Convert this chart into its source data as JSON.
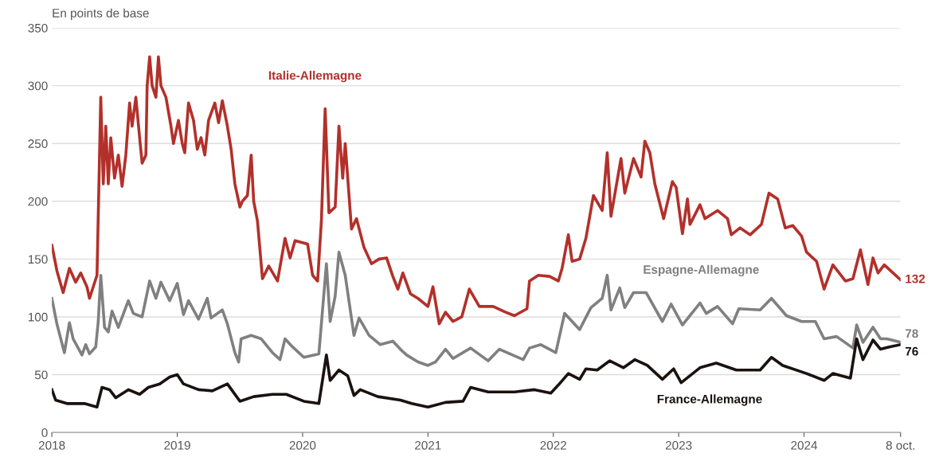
{
  "chart_data": {
    "type": "line",
    "ylabel": "En points de base",
    "ylim": [
      0,
      350
    ],
    "yticks": [
      0,
      50,
      100,
      150,
      200,
      250,
      300,
      350
    ],
    "xlim": [
      2018,
      2024.77
    ],
    "xticks": [
      2018,
      2019,
      2020,
      2021,
      2022,
      2023,
      2024,
      {
        "value": 2024.77,
        "label": "8 oct."
      }
    ],
    "grid": "y",
    "legend": false,
    "series": [
      {
        "name": "Italie-Allemagne",
        "color": "#b3302a",
        "value_labels": [
          null,
          null,
          null,
          null,
          null,
          null,
          null,
          null,
          null,
          null,
          null,
          null,
          null,
          null,
          null,
          null,
          null,
          null,
          null,
          null,
          null,
          null,
          null,
          null,
          null,
          null,
          null,
          null,
          null,
          null,
          null,
          null,
          null,
          null,
          null,
          null,
          null,
          null,
          null,
          null,
          null,
          null,
          null,
          null,
          null,
          null,
          null,
          null,
          null,
          null,
          null,
          null,
          null,
          null,
          null,
          null,
          null,
          null,
          null,
          null,
          null,
          null,
          null,
          null,
          null,
          null,
          null,
          null,
          null,
          null,
          null,
          null,
          null,
          null,
          null,
          null,
          null,
          null,
          null,
          null,
          null,
          null,
          null,
          null,
          null,
          null,
          null,
          null,
          null,
          null,
          null,
          null,
          null,
          null,
          null,
          null,
          null,
          null,
          null,
          null,
          null,
          null,
          null,
          null,
          null,
          null,
          null,
          null,
          null,
          null,
          null,
          null,
          null,
          null,
          null,
          null,
          null,
          null,
          null,
          null,
          null,
          null,
          null,
          null,
          null,
          null,
          null,
          null,
          null,
          null,
          null,
          null,
          null,
          null,
          null,
          null,
          null,
          null,
          null,
          null,
          null,
          null,
          null,
          "132"
        ],
        "x": [
          2018.0,
          2018.04,
          2018.09,
          2018.14,
          2018.19,
          2018.23,
          2018.28,
          2018.3,
          2018.36,
          2018.39,
          2018.41,
          2018.43,
          2018.45,
          2018.47,
          2018.5,
          2018.53,
          2018.56,
          2018.59,
          2018.62,
          2018.64,
          2018.67,
          2018.7,
          2018.72,
          2018.75,
          2018.76,
          2018.78,
          2018.8,
          2018.83,
          2018.85,
          2018.87,
          2018.91,
          2018.95,
          2018.97,
          2019.01,
          2019.04,
          2019.06,
          2019.09,
          2019.13,
          2019.16,
          2019.19,
          2019.22,
          2019.25,
          2019.3,
          2019.33,
          2019.36,
          2019.4,
          2019.43,
          2019.46,
          2019.5,
          2019.52,
          2019.56,
          2019.59,
          2019.61,
          2019.64,
          2019.68,
          2019.73,
          2019.8,
          2019.86,
          2019.9,
          2019.94,
          2020.04,
          2020.08,
          2020.12,
          2020.15,
          2020.18,
          2020.21,
          2020.26,
          2020.29,
          2020.32,
          2020.34,
          2020.39,
          2020.43,
          2020.49,
          2020.55,
          2020.61,
          2020.67,
          2020.72,
          2020.76,
          2020.8,
          2020.86,
          2020.92,
          2021.0,
          2021.04,
          2021.09,
          2021.14,
          2021.2,
          2021.27,
          2021.33,
          2021.41,
          2021.52,
          2021.62,
          2021.69,
          2021.79,
          2021.81,
          2021.88,
          2021.97,
          2022.04,
          2022.07,
          2022.12,
          2022.15,
          2022.21,
          2022.26,
          2022.32,
          2022.39,
          2022.43,
          2022.46,
          2022.54,
          2022.57,
          2022.64,
          2022.7,
          2022.73,
          2022.77,
          2022.81,
          2022.88,
          2022.95,
          2022.98,
          2023.03,
          2023.07,
          2023.09,
          2023.17,
          2023.21,
          2023.31,
          2023.39,
          2023.42,
          2023.49,
          2023.57,
          2023.66,
          2023.72,
          2023.79,
          2023.85,
          2023.91,
          2023.98,
          2024.02,
          2024.1,
          2024.16,
          2024.23,
          2024.33,
          2024.39,
          2024.45,
          2024.51,
          2024.55,
          2024.59,
          2024.64,
          2024.77
        ],
        "values": [
          162,
          140,
          121,
          142,
          130,
          138,
          126,
          116,
          136,
          290,
          215,
          265,
          215,
          255,
          220,
          240,
          213,
          240,
          285,
          265,
          290,
          255,
          233,
          240,
          300,
          325,
          300,
          290,
          325,
          300,
          290,
          265,
          250,
          270,
          250,
          242,
          285,
          270,
          245,
          255,
          240,
          270,
          285,
          268,
          287,
          265,
          245,
          215,
          195,
          200,
          205,
          240,
          200,
          183,
          133,
          144,
          131,
          168,
          151,
          166,
          163,
          136,
          131,
          183,
          280,
          190,
          195,
          265,
          220,
          250,
          176,
          185,
          160,
          146,
          150,
          151,
          135,
          124,
          138,
          120,
          116,
          109,
          126,
          94,
          104,
          96,
          100,
          124,
          109,
          109,
          104,
          101,
          107,
          131,
          136,
          135,
          131,
          142,
          171,
          148,
          150,
          168,
          205,
          192,
          242,
          187,
          237,
          207,
          237,
          221,
          252,
          242,
          215,
          185,
          217,
          212,
          172,
          202,
          180,
          197,
          185,
          192,
          185,
          171,
          177,
          171,
          180,
          207,
          202,
          177,
          179,
          170,
          156,
          148,
          124,
          145,
          131,
          133,
          158,
          128,
          151,
          138,
          145,
          132
        ]
      },
      {
        "name": "Espagne-Allemagne",
        "color": "#808080",
        "x": [
          2018.0,
          2018.04,
          2018.1,
          2018.14,
          2018.17,
          2018.24,
          2018.27,
          2018.3,
          2018.35,
          2018.37,
          2018.39,
          2018.42,
          2018.45,
          2018.48,
          2018.53,
          2018.61,
          2018.65,
          2018.72,
          2018.78,
          2018.83,
          2018.87,
          2018.94,
          2019.0,
          2019.05,
          2019.09,
          2019.17,
          2019.24,
          2019.27,
          2019.36,
          2019.4,
          2019.46,
          2019.49,
          2019.51,
          2019.59,
          2019.67,
          2019.76,
          2019.82,
          2019.86,
          2019.92,
          2020.01,
          2020.13,
          2020.19,
          2020.22,
          2020.26,
          2020.29,
          2020.34,
          2020.41,
          2020.45,
          2020.53,
          2020.62,
          2020.72,
          2020.78,
          2020.83,
          2020.92,
          2021.0,
          2021.06,
          2021.14,
          2021.2,
          2021.34,
          2021.48,
          2021.57,
          2021.76,
          2021.81,
          2021.9,
          2022.02,
          2022.09,
          2022.21,
          2022.3,
          2022.39,
          2022.43,
          2022.46,
          2022.53,
          2022.57,
          2022.64,
          2022.74,
          2022.87,
          2022.94,
          2023.03,
          2023.17,
          2023.22,
          2023.31,
          2023.43,
          2023.48,
          2023.65,
          2023.74,
          2023.86,
          2023.98,
          2024.09,
          2024.16,
          2024.26,
          2024.39,
          2024.42,
          2024.47,
          2024.55,
          2024.61,
          2024.66,
          2024.77
        ],
        "values": [
          116,
          94,
          69,
          95,
          81,
          67,
          76,
          68,
          74,
          96,
          136,
          91,
          87,
          105,
          91,
          114,
          103,
          100,
          131,
          116,
          130,
          114,
          129,
          102,
          114,
          98,
          116,
          99,
          106,
          94,
          69,
          61,
          81,
          84,
          81,
          69,
          63,
          81,
          74,
          65,
          68,
          146,
          96,
          118,
          156,
          136,
          84,
          99,
          84,
          76,
          79,
          72,
          67,
          61,
          58,
          61,
          72,
          64,
          73,
          62,
          72,
          63,
          73,
          76,
          69,
          103,
          89,
          108,
          116,
          136,
          106,
          125,
          108,
          121,
          121,
          96,
          111,
          93,
          112,
          103,
          109,
          94,
          107,
          106,
          116,
          101,
          96,
          96,
          81,
          83,
          73,
          93,
          78,
          91,
          81,
          81,
          78
        ],
        "value_labels": [
          null,
          null,
          null,
          null,
          null,
          null,
          null,
          null,
          null,
          null,
          null,
          null,
          null,
          null,
          null,
          null,
          null,
          null,
          null,
          null,
          null,
          null,
          null,
          null,
          null,
          null,
          null,
          null,
          null,
          null,
          null,
          null,
          null,
          null,
          null,
          null,
          null,
          null,
          null,
          null,
          null,
          null,
          null,
          null,
          null,
          null,
          null,
          null,
          null,
          null,
          null,
          null,
          null,
          null,
          null,
          null,
          null,
          null,
          null,
          null,
          null,
          null,
          null,
          null,
          null,
          null,
          null,
          null,
          null,
          null,
          null,
          null,
          null,
          null,
          null,
          null,
          null,
          null,
          null,
          null,
          null,
          null,
          null,
          null,
          null,
          null,
          null,
          null,
          null,
          null,
          null,
          null,
          null,
          null,
          null,
          null,
          "78"
        ]
      },
      {
        "name": "France-Allemagne",
        "color": "#1a1210",
        "value_labels": [
          null,
          null,
          null,
          null,
          null,
          null,
          null,
          null,
          null,
          null,
          null,
          null,
          null,
          null,
          null,
          null,
          null,
          null,
          null,
          null,
          null,
          null,
          null,
          null,
          null,
          null,
          null,
          null,
          null,
          null,
          null,
          null,
          null,
          null,
          null,
          null,
          null,
          null,
          null,
          null,
          null,
          null,
          null,
          null,
          null,
          null,
          null,
          null,
          null,
          null,
          null,
          null,
          null,
          null,
          null,
          null,
          null,
          null,
          null,
          null,
          null,
          null,
          null,
          null,
          null,
          null,
          null,
          null,
          "76"
        ],
        "x": [
          2018.0,
          2018.03,
          2018.12,
          2018.26,
          2018.36,
          2018.4,
          2018.46,
          2018.51,
          2018.61,
          2018.7,
          2018.77,
          2018.86,
          2018.94,
          2019.0,
          2019.05,
          2019.17,
          2019.28,
          2019.4,
          2019.5,
          2019.61,
          2019.76,
          2019.87,
          2020.01,
          2020.13,
          2020.19,
          2020.22,
          2020.29,
          2020.36,
          2020.41,
          2020.46,
          2020.6,
          2020.78,
          2020.87,
          2021.0,
          2021.14,
          2021.28,
          2021.34,
          2021.48,
          2021.69,
          2021.85,
          2021.98,
          2022.04,
          2022.12,
          2022.21,
          2022.26,
          2022.35,
          2022.45,
          2022.56,
          2022.65,
          2022.75,
          2022.87,
          2022.96,
          2023.02,
          2023.17,
          2023.3,
          2023.46,
          2023.65,
          2023.74,
          2023.83,
          2024.02,
          2024.16,
          2024.23,
          2024.37,
          2024.42,
          2024.47,
          2024.55,
          2024.61,
          2024.68,
          2024.77
        ],
        "values": [
          37,
          28,
          25,
          25,
          22,
          39,
          37,
          30,
          37,
          33,
          39,
          42,
          48,
          50,
          42,
          37,
          36,
          42,
          27,
          31,
          33,
          33,
          27,
          25,
          67,
          45,
          54,
          49,
          32,
          37,
          31,
          28,
          25,
          22,
          26,
          27,
          39,
          35,
          35,
          37,
          34,
          41,
          51,
          46,
          55,
          54,
          62,
          56,
          63,
          58,
          46,
          55,
          43,
          56,
          60,
          54,
          54,
          65,
          58,
          51,
          45,
          51,
          47,
          81,
          63,
          80,
          72,
          74,
          76
        ]
      }
    ]
  }
}
